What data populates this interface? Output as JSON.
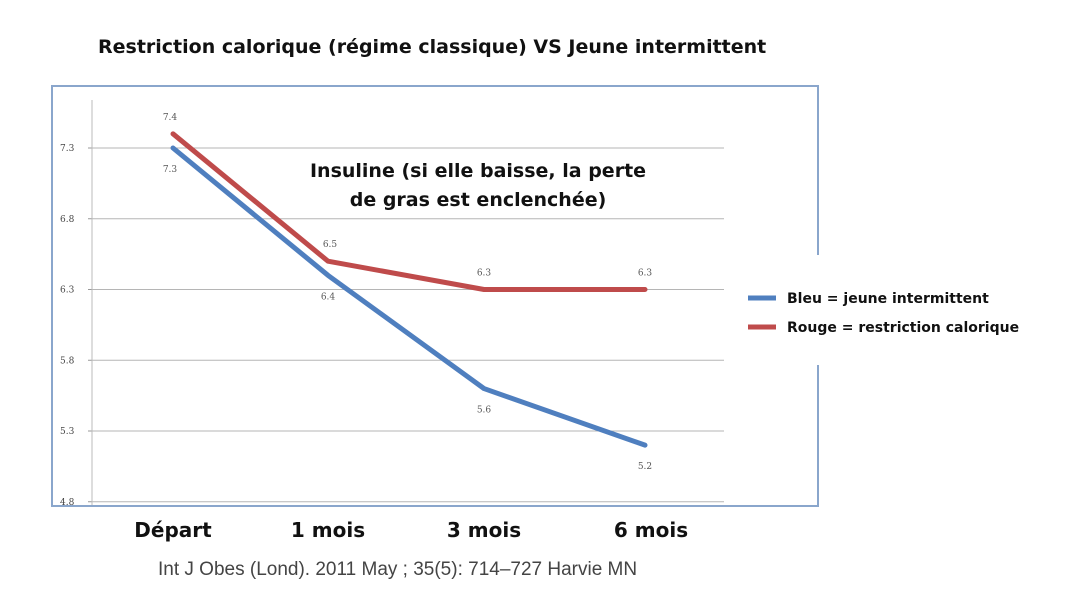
{
  "chart_data": {
    "type": "line",
    "title": "Restriction calorique (régime classique) VS Jeune intermittent",
    "annotation": [
      "Insuline (si elle baisse, la perte",
      "de gras est enclenchée)"
    ],
    "categories": [
      "Départ",
      "1 mois",
      "3 mois",
      "6 mois"
    ],
    "y_ticks": [
      "4.8",
      "5.3",
      "5.8",
      "6.3",
      "6.8",
      "7.3"
    ],
    "ylim": [
      4.8,
      7.6
    ],
    "grid": true,
    "legend_position": "right",
    "series": [
      {
        "name": "Bleu = jeune intermittent",
        "color": "#4f7fbf",
        "values": [
          7.3,
          6.4,
          5.6,
          5.2
        ],
        "labels": [
          "7.3",
          "6.4",
          "5.6",
          "5.2"
        ]
      },
      {
        "name": "Rouge = restriction calorique",
        "color": "#bf4b4b",
        "values": [
          7.4,
          6.5,
          6.3,
          6.3
        ],
        "labels": [
          "7.4",
          "6.5",
          "6.3",
          "6.3"
        ]
      }
    ],
    "source": "Int J Obes (Lond). 2011 May ; 35(5): 714–727 Harvie MN"
  }
}
